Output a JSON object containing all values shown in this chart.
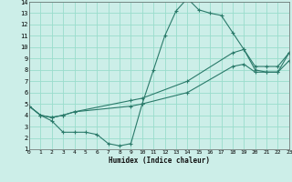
{
  "xlabel": "Humidex (Indice chaleur)",
  "bg_color": "#cceee8",
  "grid_color": "#99ddcc",
  "line_color": "#2a7a6a",
  "series": [
    {
      "x": [
        0,
        1,
        2,
        3,
        4,
        5,
        6,
        7,
        8,
        9,
        10,
        11,
        12,
        13,
        14,
        15,
        16,
        17,
        18,
        19,
        20,
        21,
        22,
        23
      ],
      "y": [
        4.8,
        4.0,
        3.5,
        2.5,
        2.5,
        2.5,
        2.3,
        1.5,
        1.3,
        1.5,
        5.0,
        8.0,
        11.0,
        13.2,
        14.3,
        13.3,
        13.0,
        12.8,
        11.3,
        9.8,
        8.0,
        7.8,
        7.8,
        9.5
      ]
    },
    {
      "x": [
        0,
        1,
        2,
        3,
        4,
        9,
        10,
        14,
        18,
        19,
        20,
        21,
        22,
        23
      ],
      "y": [
        4.8,
        4.0,
        3.8,
        4.0,
        4.3,
        5.3,
        5.5,
        7.0,
        9.5,
        9.8,
        8.3,
        8.3,
        8.3,
        9.5
      ]
    },
    {
      "x": [
        0,
        1,
        2,
        3,
        4,
        9,
        10,
        14,
        18,
        19,
        20,
        21,
        22,
        23
      ],
      "y": [
        4.8,
        4.0,
        3.8,
        4.0,
        4.3,
        4.8,
        5.0,
        6.0,
        8.3,
        8.5,
        7.8,
        7.8,
        7.8,
        8.8
      ]
    }
  ],
  "xlim": [
    0,
    23
  ],
  "ylim": [
    1,
    14
  ],
  "yticks": [
    1,
    2,
    3,
    4,
    5,
    6,
    7,
    8,
    9,
    10,
    11,
    12,
    13,
    14
  ],
  "xticks": [
    0,
    1,
    2,
    3,
    4,
    5,
    6,
    7,
    8,
    9,
    10,
    11,
    12,
    13,
    14,
    15,
    16,
    17,
    18,
    19,
    20,
    21,
    22,
    23
  ]
}
